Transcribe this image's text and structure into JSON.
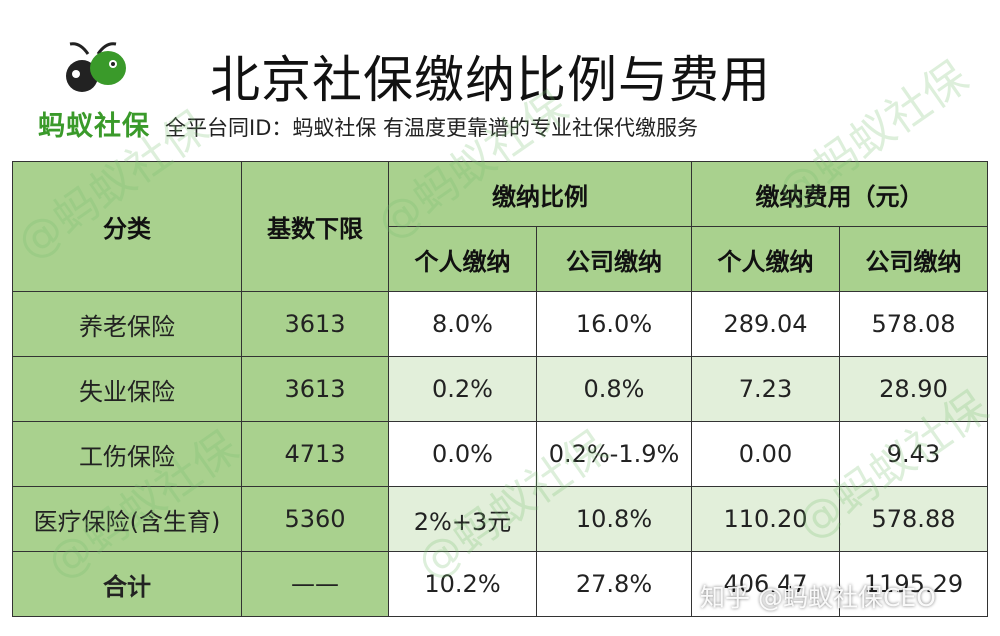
{
  "header": {
    "title": "北京社保缴纳比例与费用",
    "brand": "蚂蚁社保",
    "subtitle": "全平台同ID：蚂蚁社保 有温度更靠谱的专业社保代缴服务"
  },
  "table": {
    "headers": {
      "category": "分类",
      "base": "基数下限",
      "ratio_group": "缴纳比例",
      "fee_group": "缴纳费用（元）",
      "personal": "个人缴纳",
      "company": "公司缴纳"
    },
    "rows": [
      {
        "category": "养老保险",
        "base": "3613",
        "ratio_personal": "8.0%",
        "ratio_company": "16.0%",
        "fee_personal": "289.04",
        "fee_company": "578.08"
      },
      {
        "category": "失业保险",
        "base": "3613",
        "ratio_personal": "0.2%",
        "ratio_company": "0.8%",
        "fee_personal": "7.23",
        "fee_company": "28.90"
      },
      {
        "category": "工伤保险",
        "base": "4713",
        "ratio_personal": "0.0%",
        "ratio_company": "0.2%-1.9%",
        "fee_personal": "0.00",
        "fee_company": "9.43"
      },
      {
        "category": "医疗保险(含生育)",
        "base": "5360",
        "ratio_personal": "2%+3元",
        "ratio_company": "10.8%",
        "fee_personal": "110.20",
        "fee_company": "578.88"
      }
    ],
    "total": {
      "category": "合计",
      "base": "——",
      "ratio_personal": "10.2%",
      "ratio_company": "27.8%",
      "fee_personal": "406.47",
      "fee_company": "1195.29"
    }
  },
  "watermark": {
    "text": "@蚂蚁社保",
    "credit": "知乎 @蚂蚁社保CEO"
  },
  "colors": {
    "header_green": "#a9d18e",
    "light_green": "#e2efda",
    "brand_green": "#3a9a2a"
  }
}
